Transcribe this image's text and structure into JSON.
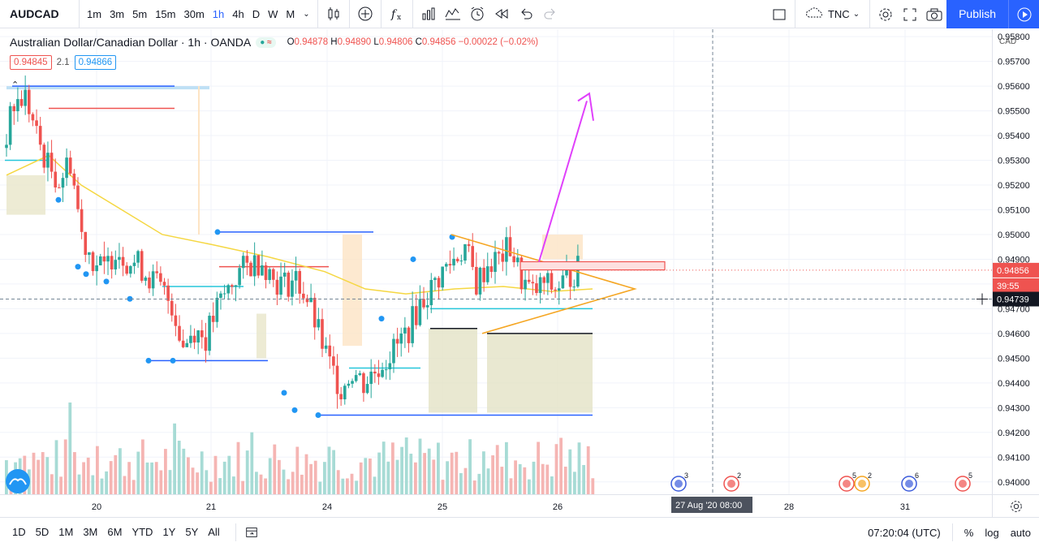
{
  "symbol": "AUDCAD",
  "intervals": [
    "1m",
    "3m",
    "5m",
    "15m",
    "30m",
    "1h",
    "4h",
    "D",
    "W",
    "M"
  ],
  "active_interval": "1h",
  "toolbar": {
    "template_label": "TNC",
    "publish_label": "Publish"
  },
  "legend": {
    "pair": "Australian Dollar/Canadian Dollar · 1h · OANDA",
    "o_label": "O",
    "o": "0.94878",
    "h_label": "H",
    "h": "0.94890",
    "l_label": "L",
    "l": "0.94806",
    "c_label": "C",
    "c": "0.94856",
    "change": "−0.00022 (−0.02%)",
    "bid": "0.94845",
    "spread": "2.1",
    "ask": "0.94866"
  },
  "currency_label": "CAD",
  "price_labels": {
    "last": "0.94856",
    "countdown": "39:55",
    "crosshair": "0.94739"
  },
  "crosshair_time": {
    "date": "27 Aug '20",
    "time": "08:00"
  },
  "clock": "07:20:04 (UTC)",
  "ranges": [
    "1D",
    "5D",
    "1M",
    "3M",
    "6M",
    "YTD",
    "1Y",
    "5Y",
    "All"
  ],
  "scale_buttons": {
    "percent": "%",
    "log": "log",
    "auto": "auto"
  },
  "colors": {
    "up": "#26a69a",
    "down": "#ef5350",
    "accent": "#2962ff",
    "ma": "#f5d742",
    "arrow": "#e040fb",
    "triangle": "#f5a623"
  },
  "chart_data": {
    "type": "candlestick",
    "title": "Australian Dollar/Canadian Dollar · 1h · OANDA",
    "ylim": [
      0.9395,
      0.9583
    ],
    "y_ticks": [
      "0.95800",
      "0.95700",
      "0.95600",
      "0.95500",
      "0.95400",
      "0.95300",
      "0.95200",
      "0.95100",
      "0.95000",
      "0.94900",
      "0.94800",
      "0.94700",
      "0.94600",
      "0.94500",
      "0.94400",
      "0.94300",
      "0.94200",
      "0.94100",
      "0.94000"
    ],
    "x_ticks": [
      "20",
      "21",
      "24",
      "25",
      "26",
      "28",
      "31"
    ],
    "last_price": 0.94856,
    "crosshair_price": 0.94739,
    "ohlc_last": {
      "open": 0.94878,
      "high": 0.9489,
      "low": 0.94806,
      "close": 0.94856
    },
    "close_path": [
      0.9535,
      0.9552,
      0.9556,
      0.954,
      0.9528,
      0.9522,
      0.953,
      0.95,
      0.949,
      0.9485,
      0.9495,
      0.949,
      0.9488,
      0.9483,
      0.9478,
      0.9472,
      0.9455,
      0.9462,
      0.9458,
      0.947,
      0.9478,
      0.9485,
      0.9488,
      0.949,
      0.9482,
      0.948,
      0.9482,
      0.9474,
      0.946,
      0.9447,
      0.9438,
      0.9445,
      0.944,
      0.9445,
      0.945,
      0.9455,
      0.9462,
      0.9472,
      0.9478,
      0.9485,
      0.949,
      0.9495,
      0.948,
      0.9488,
      0.949,
      0.9495,
      0.9482,
      0.9476,
      0.948,
      0.9478,
      0.9482,
      0.9486
    ]
  }
}
